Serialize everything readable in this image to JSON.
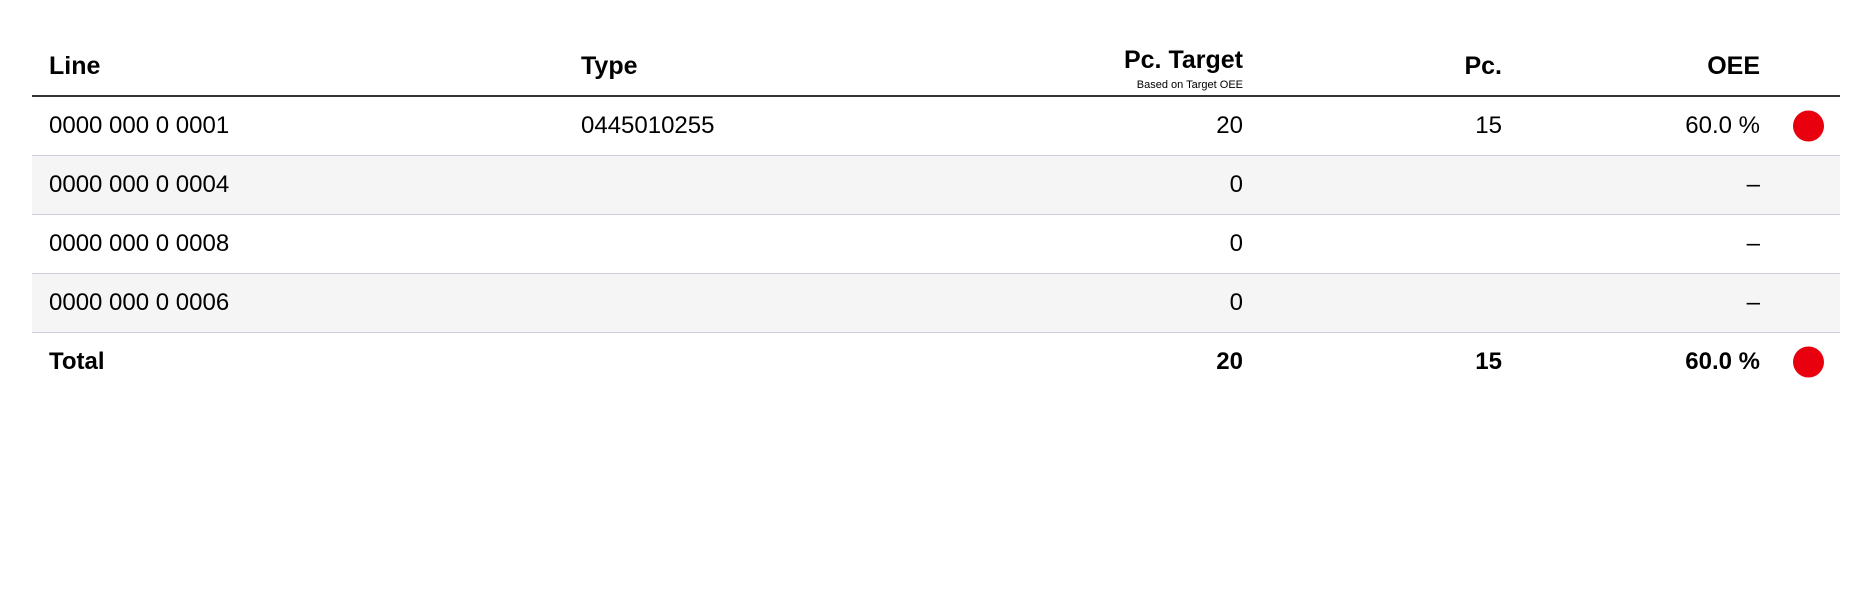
{
  "columns": {
    "line": "Line",
    "type": "Type",
    "target": "Pc. Target",
    "target_sub": "Based on Target OEE",
    "pc": "Pc.",
    "oee": "OEE"
  },
  "rows": [
    {
      "line": "0000 000 0 0001",
      "type": "0445010255",
      "target": "20",
      "pc": "15",
      "oee": "60.0 %",
      "status": "red"
    },
    {
      "line": "0000 000 0 0004",
      "type": "",
      "target": "0",
      "pc": "",
      "oee": "–",
      "status": null
    },
    {
      "line": "0000 000 0 0008",
      "type": "",
      "target": "0",
      "pc": "",
      "oee": "–",
      "status": null
    },
    {
      "line": "0000 000 0 0006",
      "type": "",
      "target": "0",
      "pc": "",
      "oee": "–",
      "status": null
    }
  ],
  "total": {
    "label": "Total",
    "target": "20",
    "pc": "15",
    "oee": "60.0 %",
    "status": "red"
  },
  "colors": {
    "red": "#e8000e"
  }
}
